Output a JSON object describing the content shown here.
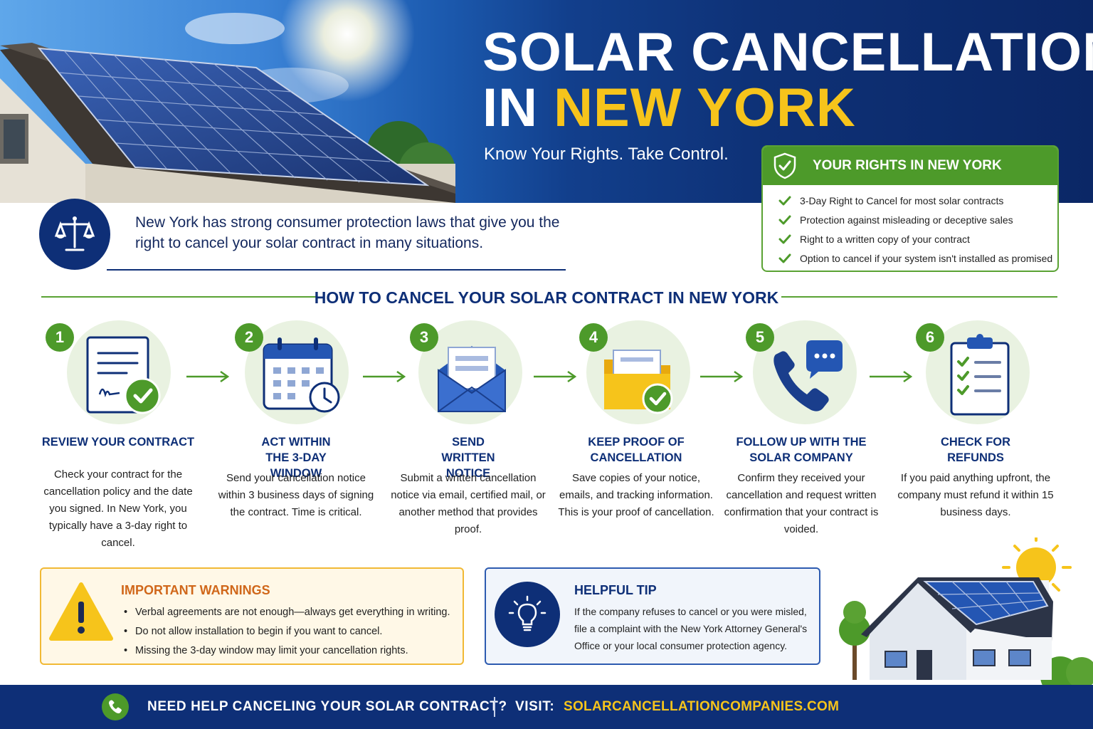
{
  "hero": {
    "title_line1": "SOLAR CANCELLATION",
    "title_line2_white": "IN",
    "title_line2_yellow": "NEW YORK",
    "tagline": "Know Your Rights. Take Control."
  },
  "rights": {
    "title": "YOUR RIGHTS IN NEW YORK",
    "items": [
      "3-Day Right to Cancel for most solar contracts",
      "Protection against misleading or deceptive sales",
      "Right to a written copy of your contract",
      "Option to cancel if your system isn't installed as promised"
    ]
  },
  "intro": {
    "text": "New York has strong consumer protection laws that give you the right to cancel your solar contract in many situations."
  },
  "steps_title": "HOW TO CANCEL YOUR SOLAR CONTRACT IN NEW YORK",
  "steps": [
    {
      "number": "1",
      "title": "REVIEW YOUR CONTRACT",
      "desc": "Check your contract for the cancellation policy and the date you signed. In New York, you typically have a 3-day right to cancel.",
      "icon": "contract-check-icon"
    },
    {
      "number": "2",
      "title": "ACT WITHIN THE 3-DAY WINDOW",
      "desc": "Send your cancellation notice within 3 business days of signing the contract. Time is critical.",
      "icon": "calendar-clock-icon"
    },
    {
      "number": "3",
      "title": "SEND WRITTEN NOTICE",
      "desc": "Submit a written cancellation notice via email, certified mail, or another method that provides proof.",
      "icon": "envelope-icon"
    },
    {
      "number": "4",
      "title": "KEEP PROOF OF CANCELLATION",
      "desc": "Save copies of your notice, emails, and tracking information. This is your proof of cancellation.",
      "icon": "folder-check-icon"
    },
    {
      "number": "5",
      "title": "FOLLOW UP WITH THE SOLAR COMPANY",
      "desc": "Confirm they received your cancellation and request written confirmation that your contract is voided.",
      "icon": "phone-chat-icon"
    },
    {
      "number": "6",
      "title": "CHECK FOR REFUNDS",
      "desc": "If you paid anything upfront, the company must refund it within 15 business days.",
      "icon": "clipboard-checklist-icon"
    }
  ],
  "warnings": {
    "title": "IMPORTANT WARNINGS",
    "items": [
      "Verbal agreements are not enough—always get everything in writing.",
      "Do not allow installation to begin if you want to cancel.",
      "Missing the 3-day window may limit your cancellation rights."
    ]
  },
  "tip": {
    "title": "HELPFUL TIP",
    "text": "If the company refuses to cancel or you were misled, file a complaint with the New York Attorney General's Office or your local consumer protection agency."
  },
  "footer": {
    "question": "NEED HELP CANCELING YOUR SOLAR CONTRACT?",
    "visit_label": "VISIT:",
    "url": "SOLARCANCELLATIONCOMPANIES.COM"
  },
  "colors": {
    "navy": "#0e2f77",
    "green": "#4d9a2a",
    "yellow": "#f6c41b",
    "orange": "#d0671a"
  }
}
